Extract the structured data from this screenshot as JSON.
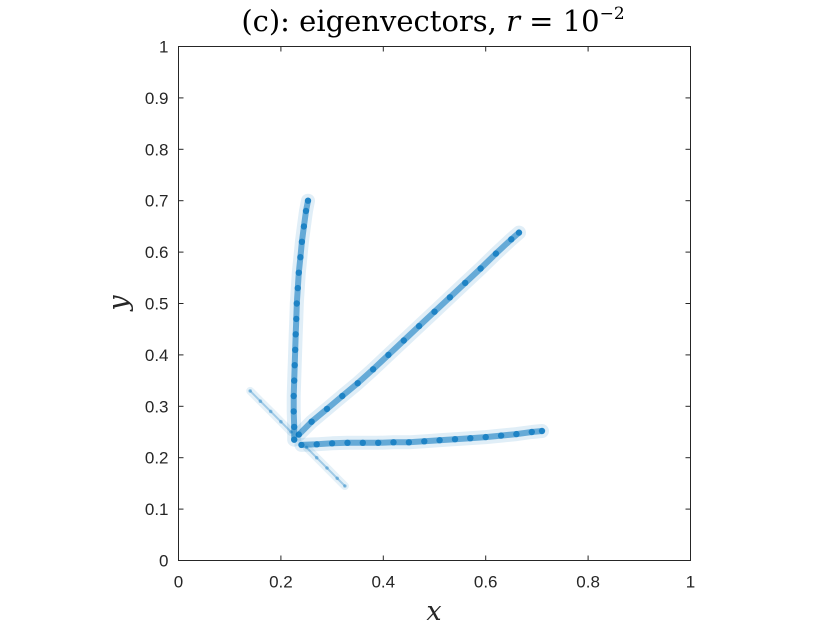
{
  "chart_data": {
    "type": "scatter",
    "title": {
      "prefix": "(c): eigenvectors, ",
      "var": "r",
      "equals": " = 10",
      "exponent": "−2"
    },
    "xlabel": "x",
    "ylabel": "y",
    "xlim": [
      0,
      1
    ],
    "ylim": [
      0,
      1
    ],
    "xticks": [
      0,
      0.2,
      0.4,
      0.6,
      0.8,
      1
    ],
    "xtick_labels": [
      "0",
      "0.2",
      "0.4",
      "0.6",
      "0.8",
      "1"
    ],
    "yticks": [
      0,
      0.1,
      0.2,
      0.3,
      0.4,
      0.5,
      0.6,
      0.7,
      0.8,
      0.9,
      1
    ],
    "ytick_labels": [
      "0",
      "0.1",
      "0.2",
      "0.3",
      "0.4",
      "0.5",
      "0.6",
      "0.7",
      "0.8",
      "0.9",
      "1"
    ],
    "grid": false,
    "marker_color": "#0072BD",
    "series": [
      {
        "points": [
          [
            0.226,
            0.235
          ],
          [
            0.226,
            0.26
          ],
          [
            0.225,
            0.29
          ],
          [
            0.225,
            0.32
          ],
          [
            0.226,
            0.35
          ],
          [
            0.227,
            0.38
          ],
          [
            0.228,
            0.41
          ],
          [
            0.229,
            0.44
          ],
          [
            0.23,
            0.47
          ],
          [
            0.231,
            0.5
          ],
          [
            0.233,
            0.53
          ],
          [
            0.235,
            0.56
          ],
          [
            0.238,
            0.59
          ],
          [
            0.241,
            0.62
          ],
          [
            0.245,
            0.65
          ],
          [
            0.249,
            0.68
          ],
          [
            0.253,
            0.7
          ]
        ]
      },
      {
        "points": [
          [
            0.235,
            0.245
          ],
          [
            0.26,
            0.27
          ],
          [
            0.29,
            0.295
          ],
          [
            0.32,
            0.32
          ],
          [
            0.35,
            0.345
          ],
          [
            0.38,
            0.372
          ],
          [
            0.41,
            0.4
          ],
          [
            0.44,
            0.428
          ],
          [
            0.47,
            0.456
          ],
          [
            0.5,
            0.484
          ],
          [
            0.53,
            0.512
          ],
          [
            0.56,
            0.54
          ],
          [
            0.59,
            0.568
          ],
          [
            0.62,
            0.597
          ],
          [
            0.65,
            0.625
          ],
          [
            0.665,
            0.638
          ]
        ]
      },
      {
        "points": [
          [
            0.24,
            0.225
          ],
          [
            0.27,
            0.226
          ],
          [
            0.3,
            0.228
          ],
          [
            0.33,
            0.229
          ],
          [
            0.36,
            0.229
          ],
          [
            0.39,
            0.229
          ],
          [
            0.42,
            0.23
          ],
          [
            0.45,
            0.23
          ],
          [
            0.48,
            0.232
          ],
          [
            0.51,
            0.234
          ],
          [
            0.54,
            0.236
          ],
          [
            0.57,
            0.238
          ],
          [
            0.6,
            0.24
          ],
          [
            0.63,
            0.243
          ],
          [
            0.66,
            0.246
          ],
          [
            0.69,
            0.25
          ],
          [
            0.71,
            0.252
          ]
        ]
      },
      {
        "points": [
          [
            0.14,
            0.33
          ],
          [
            0.16,
            0.31
          ],
          [
            0.18,
            0.29
          ],
          [
            0.2,
            0.27
          ],
          [
            0.22,
            0.25
          ]
        ]
      },
      {
        "points": [
          [
            0.25,
            0.22
          ],
          [
            0.27,
            0.2
          ],
          [
            0.29,
            0.18
          ],
          [
            0.31,
            0.16
          ],
          [
            0.325,
            0.145
          ]
        ]
      }
    ]
  }
}
